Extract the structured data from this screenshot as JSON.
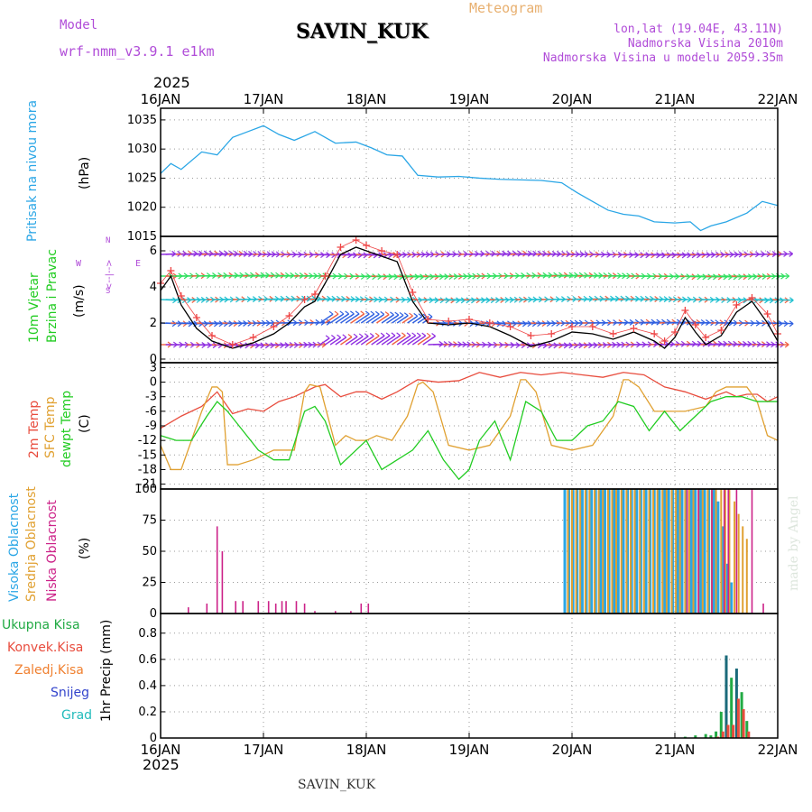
{
  "header": {
    "model_label": "Model",
    "model_name": "wrf-nmm_v3.9.1 e1km",
    "meteogram_label": "Meteogram",
    "station_title": "SAVIN_KUK",
    "location": "lon,lat (19.04E, 43.11N)",
    "altitude": "Nadmorska Visina 2010m",
    "model_altitude": "Nadmorska Visina u modelu 2059.35m",
    "year_top": "2025",
    "year_bottom": "2025",
    "footer_station": "SAVIN_KUK",
    "credit": "made by Angel"
  },
  "panel_labels": {
    "pressure": {
      "line1": "Pritisak na nivou mora",
      "unit": "(hPa)"
    },
    "wind": {
      "line1": "10m Vjetar",
      "line2": "Brzina i Pravac",
      "unit": "(m/s)",
      "compass_top": "N",
      "compass_left": "W",
      "compass_right": "E",
      "compass_bottom": "S",
      "compass_arrows": "<--|-->"
    },
    "temp": {
      "line1": "2m Temp",
      "line2": "SFC Temp",
      "line3": "dewpt Temp",
      "unit": "(C)"
    },
    "cloud": {
      "line1": "Visoka Oblacnost",
      "line2": "Srednja Oblacnost",
      "line3": "Niska Oblacnost",
      "unit": "(%)"
    },
    "precip": {
      "legend": [
        "Ukupna Kisa",
        "Konvek.Kisa",
        "Zaledj.Kisa",
        "Snijeg",
        "Grad"
      ],
      "unit": "1hr Precip (mm)"
    }
  },
  "colors": {
    "pressure": "#2aa6e6",
    "wind_speed": "#000000",
    "wind_gust": "#ee4444",
    "t2m": "#e84c3d",
    "tsfc": "#e0a030",
    "dewpoint": "#22cc22",
    "cloud_high": "#2aa6e6",
    "cloud_mid": "#e0a030",
    "cloud_low": "#cc2288",
    "precip_total": "#22aa44",
    "precip_conv": "#e84c3d",
    "precip_frz": "#f08030",
    "snow": "#3344cc",
    "hail": "#22bbbb",
    "model": "#b04cd8",
    "meteogram": "#e8b070"
  },
  "chart_data": {
    "type": "line",
    "x_axis": {
      "ticks": [
        "16JAN",
        "17JAN",
        "18JAN",
        "19JAN",
        "20JAN",
        "21JAN",
        "22JAN"
      ]
    },
    "panels": [
      {
        "id": "pressure",
        "type": "line",
        "ylim": [
          1015,
          1037
        ],
        "yticks": [
          1015,
          1020,
          1025,
          1030,
          1035
        ],
        "series": [
          {
            "name": "Pritisak na nivou mora",
            "x": [
              0,
              0.1,
              0.2,
              0.4,
              0.55,
              0.7,
              0.85,
              1.0,
              1.15,
              1.3,
              1.5,
              1.7,
              1.9,
              2.05,
              2.2,
              2.35,
              2.5,
              2.7,
              2.9,
              3.1,
              3.3,
              3.5,
              3.7,
              3.9,
              4.05,
              4.2,
              4.35,
              4.5,
              4.65,
              4.8,
              5.0,
              5.15,
              5.25,
              5.35,
              5.5,
              5.7,
              5.85,
              6.0
            ],
            "values": [
              1025.8,
              1027.5,
              1026.5,
              1029.5,
              1029.0,
              1032.0,
              1033.0,
              1034.0,
              1032.5,
              1031.5,
              1033.0,
              1031.0,
              1031.2,
              1030.2,
              1029.0,
              1028.8,
              1025.5,
              1025.2,
              1025.3,
              1025.0,
              1024.8,
              1024.7,
              1024.6,
              1024.2,
              1022.5,
              1021.0,
              1019.5,
              1018.8,
              1018.5,
              1017.5,
              1017.3,
              1017.5,
              1016.0,
              1016.8,
              1017.5,
              1019.0,
              1021.0,
              1020.3
            ]
          }
        ]
      },
      {
        "id": "wind",
        "type": "line",
        "ylim": [
          -0.2,
          6.8
        ],
        "yticks": [
          0,
          2,
          4,
          6
        ],
        "series": [
          {
            "name": "10m Vjetar",
            "x": [
              0,
              0.1,
              0.2,
              0.35,
              0.5,
              0.7,
              0.9,
              1.1,
              1.25,
              1.4,
              1.5,
              1.6,
              1.75,
              1.9,
              2.0,
              2.15,
              2.3,
              2.45,
              2.6,
              2.8,
              3.0,
              3.2,
              3.4,
              3.6,
              3.8,
              4.0,
              4.2,
              4.4,
              4.6,
              4.8,
              4.9,
              5.0,
              5.1,
              5.2,
              5.3,
              5.45,
              5.6,
              5.75,
              5.9,
              6.0
            ],
            "values": [
              3.8,
              4.6,
              3.0,
              1.7,
              1.0,
              0.6,
              0.9,
              1.4,
              2.0,
              2.9,
              3.2,
              4.2,
              5.8,
              6.2,
              6.0,
              5.7,
              5.4,
              3.2,
              2.0,
              1.9,
              2.0,
              1.8,
              1.3,
              0.7,
              1.0,
              1.5,
              1.4,
              1.1,
              1.5,
              1.0,
              0.6,
              1.2,
              2.3,
              1.5,
              0.8,
              1.3,
              2.6,
              3.2,
              2.0,
              1.0
            ]
          },
          {
            "name": "Udar vjetra",
            "x": [
              0,
              0.1,
              0.2,
              0.35,
              0.5,
              0.7,
              0.9,
              1.1,
              1.25,
              1.4,
              1.5,
              1.6,
              1.75,
              1.9,
              2.0,
              2.15,
              2.3,
              2.45,
              2.6,
              2.8,
              3.0,
              3.2,
              3.4,
              3.6,
              3.8,
              4.0,
              4.2,
              4.4,
              4.6,
              4.8,
              4.9,
              5.0,
              5.1,
              5.2,
              5.3,
              5.45,
              5.6,
              5.75,
              5.9,
              6.0
            ],
            "values": [
              4.2,
              4.9,
              3.5,
              2.3,
              1.3,
              0.8,
              1.2,
              1.8,
              2.4,
              3.3,
              3.6,
              4.6,
              6.2,
              6.6,
              6.3,
              6.0,
              5.8,
              3.7,
              2.2,
              2.1,
              2.2,
              2.0,
              1.8,
              1.3,
              1.4,
              1.8,
              1.8,
              1.4,
              1.7,
              1.4,
              1.0,
              1.5,
              2.7,
              1.9,
              1.2,
              1.6,
              3.0,
              3.4,
              2.5,
              1.4
            ]
          }
        ],
        "barb_rows": [
          0.8,
          2.0,
          3.3,
          4.6,
          5.8
        ]
      },
      {
        "id": "temp",
        "type": "line",
        "ylim": [
          -22,
          4
        ],
        "yticks": [
          -21,
          -18,
          -15,
          -12,
          -9,
          -6,
          -3,
          0,
          3
        ],
        "series": [
          {
            "name": "2m Temp",
            "x": [
              0,
              0.2,
              0.4,
              0.55,
              0.7,
              0.85,
              1.0,
              1.15,
              1.3,
              1.5,
              1.6,
              1.75,
              1.9,
              2.0,
              2.15,
              2.3,
              2.5,
              2.7,
              2.9,
              3.1,
              3.3,
              3.5,
              3.7,
              3.9,
              4.1,
              4.3,
              4.5,
              4.7,
              4.9,
              5.1,
              5.3,
              5.5,
              5.6,
              5.7,
              5.8,
              5.9,
              6.0
            ],
            "values": [
              -9.5,
              -7.0,
              -5.0,
              -2.0,
              -6.5,
              -5.5,
              -6.0,
              -4.0,
              -3.0,
              -1.0,
              -0.5,
              -3.0,
              -2.0,
              -2.0,
              -3.5,
              -2.0,
              0.5,
              0.0,
              0.3,
              2.0,
              1.0,
              2.0,
              1.5,
              2.0,
              1.5,
              1.0,
              2.0,
              1.5,
              -1.0,
              -2.0,
              -3.5,
              -2.0,
              -3.0,
              -2.5,
              -2.5,
              -4.0,
              -3.0
            ]
          },
          {
            "name": "SFC Temp",
            "x": [
              0,
              0.1,
              0.2,
              0.3,
              0.4,
              0.5,
              0.55,
              0.6,
              0.65,
              0.75,
              0.9,
              1.1,
              1.3,
              1.4,
              1.45,
              1.55,
              1.7,
              1.8,
              1.9,
              2.0,
              2.1,
              2.25,
              2.4,
              2.5,
              2.55,
              2.65,
              2.8,
              3.0,
              3.2,
              3.4,
              3.5,
              3.55,
              3.65,
              3.8,
              4.0,
              4.2,
              4.4,
              4.5,
              4.55,
              4.65,
              4.8,
              5.0,
              5.1,
              5.3,
              5.4,
              5.5,
              5.6,
              5.7,
              5.8,
              5.9,
              6.0
            ],
            "values": [
              -13,
              -18,
              -18,
              -12,
              -6,
              -1,
              -1,
              -2,
              -17,
              -17,
              -16,
              -14,
              -14,
              -2,
              -0.5,
              -1,
              -13,
              -11,
              -12,
              -12,
              -11,
              -12,
              -7,
              -0.5,
              0,
              -2,
              -13,
              -14,
              -13,
              -7,
              0.5,
              0.5,
              -2,
              -13,
              -14,
              -13,
              -7,
              0.5,
              0.5,
              -1,
              -6,
              -6,
              -6,
              -5,
              -2,
              -1,
              -1,
              -1,
              -4,
              -11,
              -12
            ]
          },
          {
            "name": "dewpt Temp",
            "x": [
              0,
              0.15,
              0.3,
              0.45,
              0.55,
              0.65,
              0.8,
              0.95,
              1.1,
              1.25,
              1.4,
              1.5,
              1.6,
              1.75,
              1.9,
              2.0,
              2.15,
              2.3,
              2.45,
              2.6,
              2.75,
              2.9,
              3.0,
              3.1,
              3.25,
              3.4,
              3.55,
              3.7,
              3.85,
              4.0,
              4.15,
              4.3,
              4.45,
              4.6,
              4.75,
              4.9,
              5.05,
              5.2,
              5.35,
              5.5,
              5.65,
              5.8,
              5.9,
              6.0
            ],
            "values": [
              -11,
              -12,
              -12,
              -7,
              -4,
              -6,
              -10,
              -14,
              -16,
              -16,
              -6,
              -5,
              -8,
              -17,
              -14,
              -12,
              -18,
              -16,
              -14,
              -10,
              -16,
              -20,
              -18,
              -12,
              -8,
              -16,
              -4,
              -6,
              -12,
              -12,
              -9,
              -8,
              -4,
              -5,
              -10,
              -6,
              -10,
              -7,
              -4,
              -3,
              -3,
              -4,
              -4,
              -4
            ]
          }
        ]
      },
      {
        "id": "cloud",
        "type": "bar",
        "ylim": [
          0,
          100
        ],
        "yticks": [
          0,
          25,
          50,
          75,
          100
        ],
        "series": [
          {
            "name": "Visoka Oblacnost",
            "x": [
              3.93,
              3.97,
              4.01,
              4.05,
              4.1,
              4.14,
              4.19,
              4.23,
              4.28,
              4.32,
              4.36,
              4.41,
              4.45,
              4.5,
              4.54,
              4.58,
              4.63,
              4.67,
              4.72,
              4.76,
              4.8,
              4.85,
              4.9,
              4.94,
              4.98,
              5.03,
              5.07,
              5.11,
              5.16,
              5.2,
              5.25,
              5.29,
              5.33,
              5.38,
              5.42,
              5.46,
              5.51,
              5.55
            ],
            "values": [
              100,
              100,
              100,
              100,
              100,
              100,
              100,
              100,
              100,
              100,
              100,
              100,
              100,
              100,
              100,
              100,
              100,
              100,
              100,
              100,
              100,
              100,
              100,
              100,
              100,
              100,
              100,
              100,
              100,
              100,
              100,
              100,
              100,
              100,
              90,
              70,
              40,
              25
            ]
          },
          {
            "name": "Srednja Oblacnost",
            "x": [
              3.96,
              4.0,
              4.04,
              4.08,
              4.13,
              4.17,
              4.22,
              4.26,
              4.3,
              4.35,
              4.39,
              4.43,
              4.48,
              4.53,
              4.57,
              4.61,
              4.66,
              4.7,
              4.75,
              4.79,
              4.83,
              4.88,
              4.92,
              4.97,
              5.01,
              5.05,
              5.1,
              5.14,
              5.18,
              5.23,
              5.27,
              5.32,
              5.36,
              5.4,
              5.45,
              5.49,
              5.53,
              5.58,
              5.62,
              5.66,
              5.7
            ],
            "values": [
              100,
              100,
              100,
              100,
              100,
              100,
              100,
              100,
              100,
              100,
              100,
              100,
              100,
              100,
              100,
              100,
              100,
              100,
              100,
              100,
              100,
              100,
              100,
              100,
              100,
              100,
              100,
              100,
              100,
              100,
              100,
              100,
              100,
              100,
              100,
              100,
              100,
              90,
              80,
              70,
              60
            ]
          },
          {
            "name": "Niska Oblacnost",
            "x": [
              0.27,
              0.45,
              0.55,
              0.6,
              0.73,
              0.8,
              0.95,
              1.05,
              1.12,
              1.18,
              1.22,
              1.32,
              1.4,
              1.5,
              1.7,
              1.85,
              1.95,
              2.02,
              5.12,
              5.23,
              5.36,
              5.48,
              5.52,
              5.6,
              5.75,
              5.86
            ],
            "values": [
              5,
              8,
              70,
              50,
              10,
              10,
              10,
              10,
              8,
              10,
              10,
              10,
              8,
              2,
              2,
              2,
              8,
              8,
              100,
              100,
              100,
              100,
              100,
              100,
              100,
              8
            ]
          }
        ]
      },
      {
        "id": "precip",
        "type": "bar",
        "ylim": [
          0,
          0.95
        ],
        "yticks": [
          0,
          0.2,
          0.4,
          0.6,
          0.8
        ],
        "series": [
          {
            "name": "Ukupna Kisa",
            "x": [
              5.1,
              5.2,
              5.3,
              5.35,
              5.4,
              5.45,
              5.5,
              5.55,
              5.6,
              5.65,
              5.7
            ],
            "values": [
              0.01,
              0.02,
              0.03,
              0.02,
              0.05,
              0.2,
              0.63,
              0.46,
              0.53,
              0.35,
              0.13
            ]
          },
          {
            "name": "Konvek.Kisa",
            "x": [
              5.4,
              5.45,
              5.5,
              5.55,
              5.6,
              5.65,
              5.7
            ],
            "values": [
              0.01,
              0.05,
              0.1,
              0.1,
              0.3,
              0.22,
              0.05
            ]
          },
          {
            "name": "Zaledj.Kisa",
            "x": [],
            "values": []
          },
          {
            "name": "Snijeg",
            "x": [],
            "values": []
          },
          {
            "name": "Grad",
            "x": [],
            "values": []
          }
        ]
      }
    ]
  }
}
